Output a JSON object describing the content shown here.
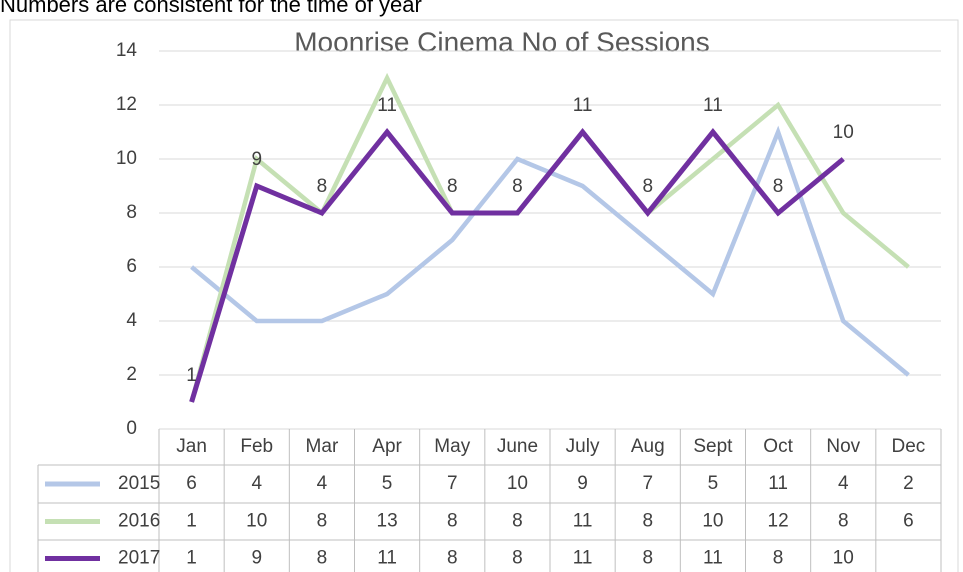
{
  "note": "Numbers are consistent for the time of year",
  "chart_data": {
    "type": "line",
    "title": "Moonrise Cinema No of Sessions",
    "categories": [
      "Jan",
      "Feb",
      "Mar",
      "Apr",
      "May",
      "June",
      "July",
      "Aug",
      "Sept",
      "Oct",
      "Nov",
      "Dec"
    ],
    "series": [
      {
        "name": "2015",
        "color": "#b4c7e7",
        "values": [
          6,
          4,
          4,
          5,
          7,
          10,
          9,
          7,
          5,
          11,
          4,
          2
        ]
      },
      {
        "name": "2016",
        "color": "#c5e0b4",
        "values": [
          1,
          10,
          8,
          13,
          8,
          8,
          11,
          8,
          10,
          12,
          8,
          6
        ]
      },
      {
        "name": "2017",
        "color": "#7030a0",
        "values": [
          1,
          9,
          8,
          11,
          8,
          8,
          11,
          8,
          11,
          8,
          10,
          null
        ],
        "data_labels": true
      }
    ],
    "ylim": [
      0,
      14
    ],
    "yticks": [
      0,
      2,
      4,
      6,
      8,
      10,
      12,
      14
    ],
    "grid": true,
    "data_table": true
  }
}
